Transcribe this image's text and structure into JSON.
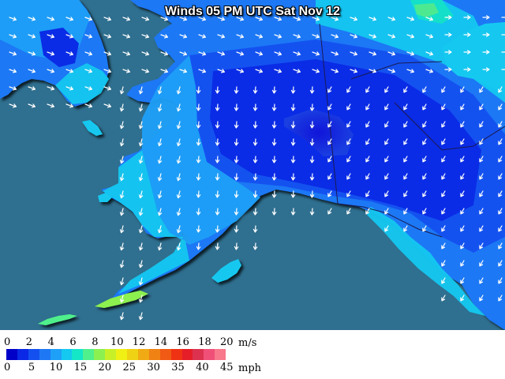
{
  "title": "Winds 05 PM UTC Sat Nov 12",
  "legend": {
    "ms_unit": "m/s",
    "mph_unit": "mph",
    "ms_ticks": [
      "0",
      "2",
      "4",
      "6",
      "8",
      "10",
      "12",
      "14",
      "16",
      "18",
      "20"
    ],
    "mph_ticks": [
      "0",
      "5",
      "10",
      "15",
      "20",
      "25",
      "30",
      "35",
      "40",
      "45"
    ],
    "colors": [
      "#0000c8",
      "#0a28e6",
      "#1450f0",
      "#1e78f5",
      "#1ea0f8",
      "#14c8f0",
      "#14e6c8",
      "#50f08c",
      "#8cf050",
      "#c8f028",
      "#f0f014",
      "#f0d214",
      "#f0aa14",
      "#f08214",
      "#f05a14",
      "#f03214",
      "#e61e28",
      "#dc3250",
      "#f05078",
      "#f8788c"
    ]
  },
  "map": {
    "ocean_color": "#2f6f8f",
    "region": "Alaska",
    "wind_direction": "northeasterly over interior, northerly along coasts"
  }
}
